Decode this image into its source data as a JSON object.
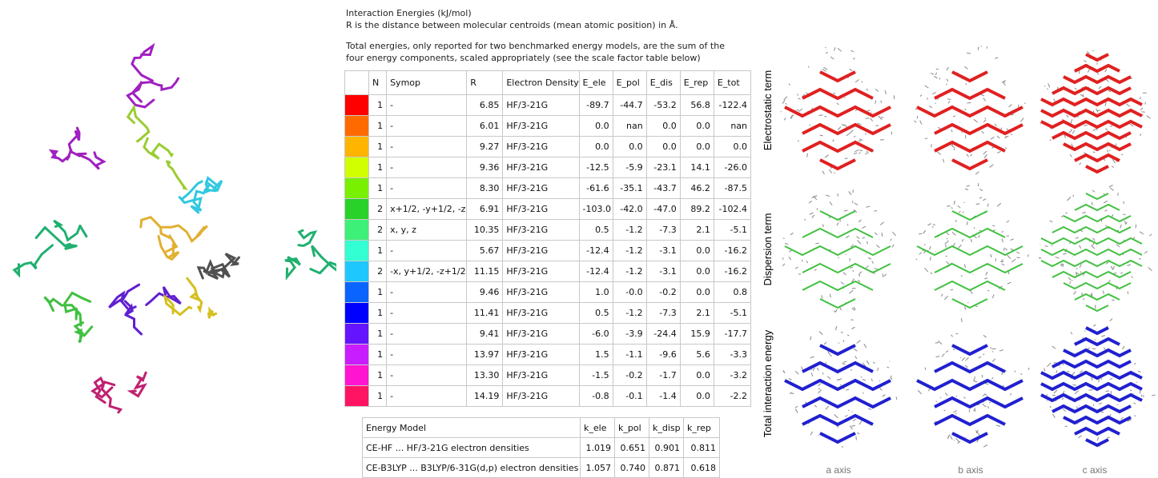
{
  "header": {
    "title": "Interaction Energies (kJ/mol)",
    "subtitle": "R is the distance between molecular centroids (mean atomic position) in Å.",
    "note_line1": "Total energies, only reported for two benchmarked energy models, are the sum of the",
    "note_line2": "four energy components, scaled appropriately (see the scale factor table below)"
  },
  "table": {
    "columns": [
      "N",
      "Symop",
      "R",
      "Electron Density",
      "E_ele",
      "E_pol",
      "E_dis",
      "E_rep",
      "E_tot"
    ],
    "rows": [
      {
        "color": "#ff0000",
        "cells": [
          "1",
          "-",
          "6.85",
          "HF/3-21G",
          "-89.7",
          "-44.7",
          "-53.2",
          "56.8",
          "-122.4"
        ]
      },
      {
        "color": "#ff6a00",
        "cells": [
          "1",
          "-",
          "6.01",
          "HF/3-21G",
          "0.0",
          "nan",
          "0.0",
          "0.0",
          "nan"
        ]
      },
      {
        "color": "#ffb400",
        "cells": [
          "1",
          "-",
          "9.27",
          "HF/3-21G",
          "0.0",
          "0.0",
          "0.0",
          "0.0",
          "0.0"
        ]
      },
      {
        "color": "#d2ff00",
        "cells": [
          "1",
          "-",
          "9.36",
          "HF/3-21G",
          "-12.5",
          "-5.9",
          "-23.1",
          "14.1",
          "-26.0"
        ]
      },
      {
        "color": "#78f000",
        "cells": [
          "1",
          "-",
          "8.30",
          "HF/3-21G",
          "-61.6",
          "-35.1",
          "-43.7",
          "46.2",
          "-87.5"
        ]
      },
      {
        "color": "#28d228",
        "cells": [
          "2",
          "x+1/2, -y+1/2, -z",
          "6.91",
          "HF/3-21G",
          "-103.0",
          "-42.0",
          "-47.0",
          "89.2",
          "-102.4"
        ]
      },
      {
        "color": "#3cf078",
        "cells": [
          "2",
          "x, y, z",
          "10.35",
          "HF/3-21G",
          "0.5",
          "-1.2",
          "-7.3",
          "2.1",
          "-5.1"
        ]
      },
      {
        "color": "#32ffd2",
        "cells": [
          "1",
          "-",
          "5.67",
          "HF/3-21G",
          "-12.4",
          "-1.2",
          "-3.1",
          "0.0",
          "-16.2"
        ]
      },
      {
        "color": "#1ec8ff",
        "cells": [
          "2",
          "-x, y+1/2, -z+1/2",
          "11.15",
          "HF/3-21G",
          "-12.4",
          "-1.2",
          "-3.1",
          "0.0",
          "-16.2"
        ]
      },
      {
        "color": "#0a64ff",
        "cells": [
          "1",
          "-",
          "9.46",
          "HF/3-21G",
          "1.0",
          "-0.0",
          "-0.2",
          "0.0",
          "0.8"
        ]
      },
      {
        "color": "#0000ff",
        "cells": [
          "1",
          "-",
          "11.41",
          "HF/3-21G",
          "0.5",
          "-1.2",
          "-7.3",
          "2.1",
          "-5.1"
        ]
      },
      {
        "color": "#6414ff",
        "cells": [
          "1",
          "-",
          "9.41",
          "HF/3-21G",
          "-6.0",
          "-3.9",
          "-24.4",
          "15.9",
          "-17.7"
        ]
      },
      {
        "color": "#c81eff",
        "cells": [
          "1",
          "-",
          "13.97",
          "HF/3-21G",
          "1.5",
          "-1.1",
          "-9.6",
          "5.6",
          "-3.3"
        ]
      },
      {
        "color": "#ff14d2",
        "cells": [
          "1",
          "-",
          "13.30",
          "HF/3-21G",
          "-1.5",
          "-0.2",
          "-1.7",
          "0.0",
          "-3.2"
        ]
      },
      {
        "color": "#ff1464",
        "cells": [
          "1",
          "-",
          "14.19",
          "HF/3-21G",
          "-0.8",
          "-0.1",
          "-1.4",
          "0.0",
          "-2.2"
        ]
      }
    ]
  },
  "scale_table": {
    "columns": [
      "Energy Model",
      "k_ele",
      "k_pol",
      "k_disp",
      "k_rep"
    ],
    "rows": [
      [
        "CE-HF ... HF/3-21G electron densities",
        "1.019",
        "0.651",
        "0.901",
        "0.811"
      ],
      [
        "CE-B3LYP ... B3LYP/6-31G(d,p) electron densities",
        "1.057",
        "0.740",
        "0.871",
        "0.618"
      ]
    ]
  },
  "figure": {
    "row_labels": [
      "Electrostatic term",
      "Dispersion term",
      "Total interaction energy"
    ],
    "column_labels": [
      "a axis",
      "b axis",
      "c axis"
    ]
  }
}
